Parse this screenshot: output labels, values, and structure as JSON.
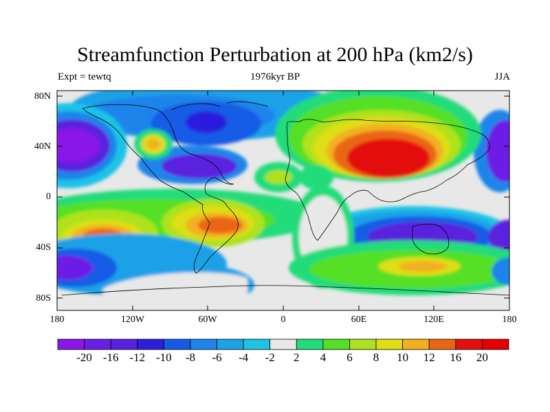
{
  "title": "Streamfunction Perturbation at 200 hPa (km2/s)",
  "subtitle_left": "Expt = tewtq",
  "subtitle_center": "1976kyr BP",
  "subtitle_right": "JJA",
  "lat_labels": [
    "80N",
    "40N",
    "0",
    "40S",
    "80S"
  ],
  "lon_labels": [
    "180",
    "120W",
    "60W",
    "0",
    "60E",
    "120E",
    "180"
  ],
  "colorbar": {
    "labels": [
      "-20",
      "-16",
      "-12",
      "-10",
      "-8",
      "-6",
      "-4",
      "-2",
      "2",
      "4",
      "6",
      "8",
      "10",
      "12",
      "16",
      "20"
    ],
    "colors": [
      "#8a17e8",
      "#6c1ee6",
      "#5a21de",
      "#2b1fdc",
      "#145ce6",
      "#1e84ea",
      "#1da1e8",
      "#1ec3e6",
      "#e8e8e8",
      "#20dc7a",
      "#54e026",
      "#aee21c",
      "#dede12",
      "#f2b020",
      "#ea6614",
      "#e41010",
      "#e40000"
    ]
  },
  "map_colors": {
    "neg_20": "#8a17e8",
    "neg_16": "#6c1ee6",
    "neg_12": "#5a21de",
    "neg_10": "#2b1fdc",
    "neg_8": "#145ce6",
    "neg_6": "#1e84ea",
    "neg_4": "#1da1e8",
    "neg_2": "#1ec3e6",
    "zero": "#e8e8e8",
    "pos_4": "#20dc7a",
    "pos_6": "#54e026",
    "pos_8": "#aee21c",
    "pos_10": "#dede12",
    "pos_12": "#f2b020",
    "pos_16": "#ea6614",
    "pos_20": "#e41010"
  }
}
